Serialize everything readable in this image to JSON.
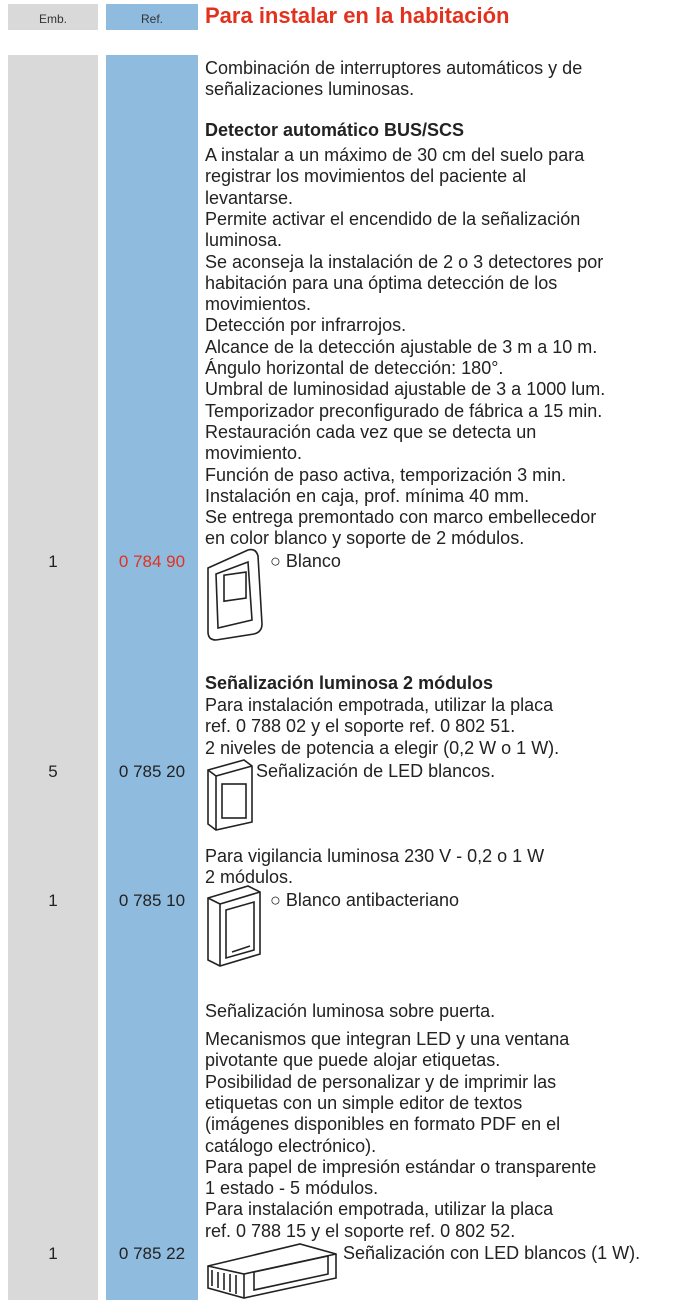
{
  "header": {
    "emb": "Emb.",
    "ref": "Ref.",
    "title": "Para instalar en la habitación"
  },
  "paragraphs": [
    {
      "lines": [
        "Combinación de interruptores automáticos y de",
        "señalizaciones luminosas."
      ]
    },
    {
      "bold": true,
      "lines": [
        "Detector automático BUS/SCS"
      ]
    },
    {
      "lines": [
        "A instalar a un máximo de 30 cm del suelo para",
        "registrar los movimientos del paciente al",
        "levantarse.",
        "Permite activar el encendido de la señalización",
        "luminosa.",
        "Se aconseja la instalación de 2 o 3 detectores por",
        "habitación para una óptima detección de los",
        "movimientos.",
        "Detección por infrarrojos.",
        "Alcance de la detección ajustable de 3 m a 10 m.",
        "Ángulo horizontal de detección: 180°.",
        "Umbral de luminosidad ajustable de 3 a 1000 lum.",
        "Temporizador preconfigurado de fábrica a 15 min.",
        "Restauración cada vez que se detecta un",
        "movimiento.",
        "Función de paso activa, temporización 3 min.",
        "Instalación en caja, prof. mínima 40 mm.",
        "Se entrega premontado con marco embellecedor",
        "en color blanco y soporte de 2 módulos."
      ]
    },
    {
      "bold": true,
      "lines": [
        "Señalización luminosa 2 módulos"
      ]
    },
    {
      "lines": [
        "Para instalación empotrada, utilizar la placa",
        "ref. 0 788 02 y el soporte ref. 0 802 51.",
        "2 niveles de potencia a elegir (0,2 W o 1 W)."
      ]
    },
    {
      "lines": [
        "Para vigilancia luminosa 230 V - 0,2 o 1 W",
        "2 módulos."
      ]
    },
    {
      "lines": [
        "Señalización luminosa sobre puerta."
      ]
    },
    {
      "lines": [
        "Mecanismos que integran LED y una ventana",
        "pivotante que puede alojar etiquetas.",
        "Posibilidad de personalizar y de imprimir las",
        "etiquetas con un simple editor de textos",
        "(imágenes disponibles en formato PDF en el",
        "catálogo electrónico).",
        "Para papel de impresión estándar o transparente",
        "1 estado - 5 módulos.",
        "Para instalación empotrada, utilizar la placa",
        "ref. 0 788 15 y el soporte ref. 0 802 52."
      ]
    }
  ],
  "rows": [
    {
      "emb": "1",
      "ref": "0 784 90",
      "label": "○ Blanco"
    },
    {
      "emb": "5",
      "ref": "0 785 20",
      "label": "Señalización de LED blancos."
    },
    {
      "emb": "1",
      "ref": "0 785 10",
      "label": "○ Blanco antibacteriano"
    },
    {
      "emb": "1",
      "ref": "0 785 22",
      "label": "Señalización con LED blancos (1 W)."
    }
  ]
}
